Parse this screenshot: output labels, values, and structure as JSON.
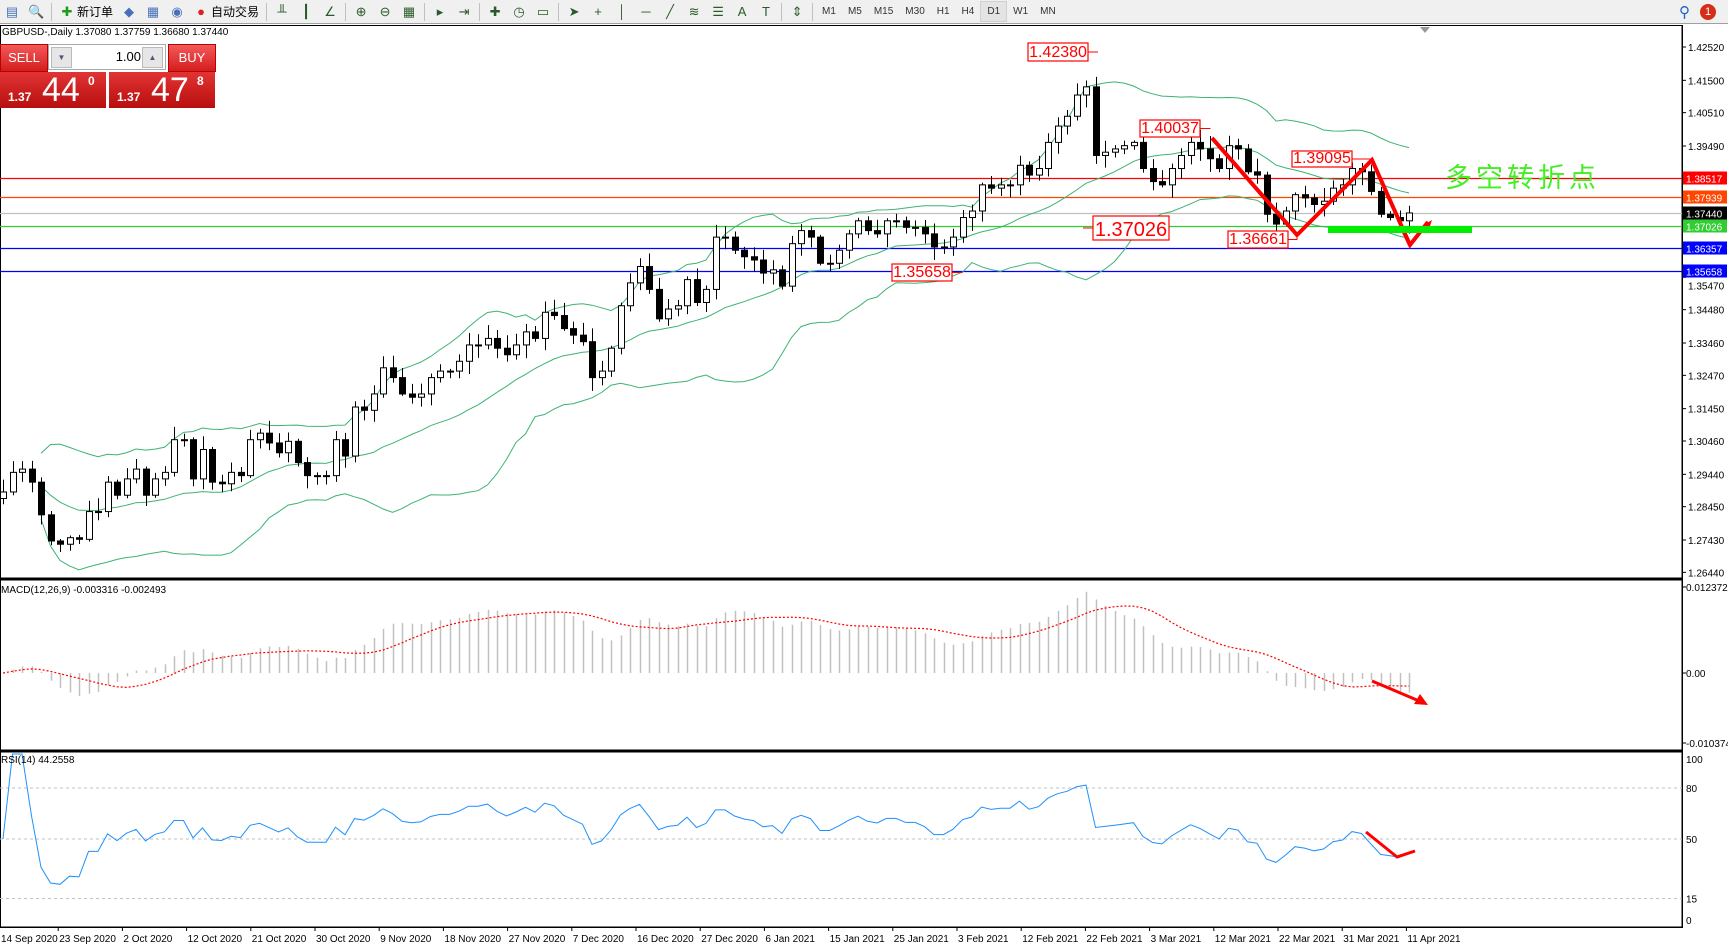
{
  "toolbar": {
    "items": [
      {
        "icon": "new-window-icon",
        "label": ""
      },
      {
        "icon": "print-preview-icon",
        "label": ""
      },
      {
        "icon": "new-order-icon",
        "label": "新订单"
      },
      {
        "icon": "metaeditor-icon",
        "label": ""
      },
      {
        "icon": "navigator-icon",
        "label": ""
      },
      {
        "icon": "signals-icon",
        "label": ""
      },
      {
        "icon": "auto-trading-icon",
        "label": "自动交易"
      }
    ],
    "chart_tools": [
      "bar-chart-icon",
      "candlestick-icon",
      "line-chart-icon",
      "zoom-in-icon",
      "zoom-out-icon",
      "tile-windows-icon",
      "autoscroll-icon",
      "chart-shift-icon",
      "indicators-icon",
      "periods-icon",
      "templates-icon",
      "cursor-icon",
      "crosshair-icon",
      "vertical-line-icon",
      "horizontal-line-icon",
      "trendline-icon",
      "fibonacci-icon",
      "channel-icon",
      "text-icon",
      "text-label-icon",
      "arrows-icon"
    ],
    "timeframes": [
      "M1",
      "M5",
      "M15",
      "M30",
      "H1",
      "H4",
      "D1",
      "W1",
      "MN"
    ],
    "active_timeframe": "D1",
    "notification_count": "1"
  },
  "chart": {
    "header": "GBPUSD-,Daily  1.37080 1.37759 1.36680 1.37440",
    "trade_panel": {
      "sell_label": "SELL",
      "buy_label": "BUY",
      "lot": "1.00",
      "sell_price": {
        "prefix": "1.37",
        "big": "44",
        "sup": "0"
      },
      "buy_price": {
        "prefix": "1.37",
        "big": "47",
        "sup": "8"
      }
    },
    "price_axis": [
      "1.42520",
      "1.41500",
      "1.40510",
      "1.39490",
      "1.35470",
      "1.34480",
      "1.33460",
      "1.32470",
      "1.31450",
      "1.30460",
      "1.29440",
      "1.28450",
      "1.27430",
      "1.26440"
    ],
    "hlines": [
      {
        "price": "1.38517",
        "color": "#ff0000",
        "text_color": "#ffffff"
      },
      {
        "price": "1.37939",
        "color": "#ff4500",
        "text_color": "#ffffff"
      },
      {
        "price": "1.37440",
        "color": "#c0c0c0",
        "tag": "#000000",
        "text_color": "#ffffff"
      },
      {
        "price": "1.37026",
        "color": "#32cd32",
        "text_color": "#ffffff"
      },
      {
        "price": "1.36357",
        "color": "#0000ff",
        "text_color": "#ffffff"
      },
      {
        "price": "1.35658",
        "color": "#0000ff",
        "text_color": "#ffffff"
      }
    ],
    "annotations": [
      "1.42380",
      "1.40037",
      "1.39095",
      "1.37026",
      "1.36661",
      "1.35658"
    ],
    "pivot_text": "多空转折点",
    "colors": {
      "bands": "#3cb371",
      "macd_hist": "#c0c0c0",
      "macd_signal": "#ff0000",
      "rsi": "#1e90ff",
      "arrow": "#ff0000",
      "marker": "#00ee00"
    },
    "close": [
      1.289,
      1.295,
      1.296,
      1.292,
      1.282,
      1.274,
      1.273,
      1.275,
      1.2745,
      1.283,
      1.283,
      1.292,
      1.288,
      1.293,
      1.296,
      1.288,
      1.293,
      1.295,
      1.305,
      1.305,
      1.293,
      1.302,
      1.292,
      1.2915,
      1.295,
      1.294,
      1.305,
      1.307,
      1.304,
      1.301,
      1.3045,
      1.298,
      1.294,
      1.294,
      1.294,
      1.305,
      1.3,
      1.315,
      1.314,
      1.319,
      1.327,
      1.324,
      1.319,
      1.318,
      1.319,
      1.324,
      1.326,
      1.326,
      1.329,
      1.334,
      1.334,
      1.336,
      1.333,
      1.331,
      1.334,
      1.338,
      1.336,
      1.344,
      1.343,
      1.339,
      1.337,
      1.335,
      1.324,
      1.326,
      1.333,
      1.346,
      1.353,
      1.358,
      1.351,
      1.342,
      1.345,
      1.346,
      1.354,
      1.347,
      1.351,
      1.367,
      1.367,
      1.363,
      1.361,
      1.36,
      1.356,
      1.357,
      1.352,
      1.365,
      1.369,
      1.367,
      1.359,
      1.359,
      1.363,
      1.368,
      1.372,
      1.369,
      1.368,
      1.372,
      1.372,
      1.37,
      1.37,
      1.368,
      1.364,
      1.364,
      1.367,
      1.373,
      1.375,
      1.383,
      1.382,
      1.383,
      1.383,
      1.389,
      1.386,
      1.388,
      1.396,
      1.401,
      1.404,
      1.4105,
      1.413,
      1.392,
      1.393,
      1.394,
      1.395,
      1.396,
      1.388,
      1.384,
      1.383,
      1.388,
      1.392,
      1.396,
      1.394,
      1.391,
      1.388,
      1.395,
      1.394,
      1.387,
      1.386,
      1.374,
      1.371,
      1.375,
      1.38,
      1.379,
      1.377,
      1.378,
      1.382,
      1.383,
      1.388,
      1.387,
      1.381,
      1.374,
      1.373,
      1.372,
      1.3744
    ],
    "date_axis": [
      "14 Sep 2020",
      "23 Sep 2020",
      "2 Oct 2020",
      "12 Oct 2020",
      "21 Oct 2020",
      "30 Oct 2020",
      "9 Nov 2020",
      "18 Nov 2020",
      "27 Nov 2020",
      "7 Dec 2020",
      "16 Dec 2020",
      "27 Dec 2020",
      "6 Jan 2021",
      "15 Jan 2021",
      "25 Jan 2021",
      "3 Feb 2021",
      "12 Feb 2021",
      "22 Feb 2021",
      "3 Mar 2021",
      "12 Mar 2021",
      "22 Mar 2021",
      "31 Mar 2021",
      "11 Apr 2021"
    ]
  },
  "macd": {
    "title": "MACD(12,26,9) -0.003316 -0.002493",
    "axis": [
      "0.012372",
      "0.00",
      "-0.010374"
    ]
  },
  "rsi": {
    "title": "RSI(14) 44.2558",
    "axis": [
      "100",
      "80",
      "50",
      "15",
      "0"
    ],
    "levels": [
      80,
      50,
      15
    ]
  }
}
